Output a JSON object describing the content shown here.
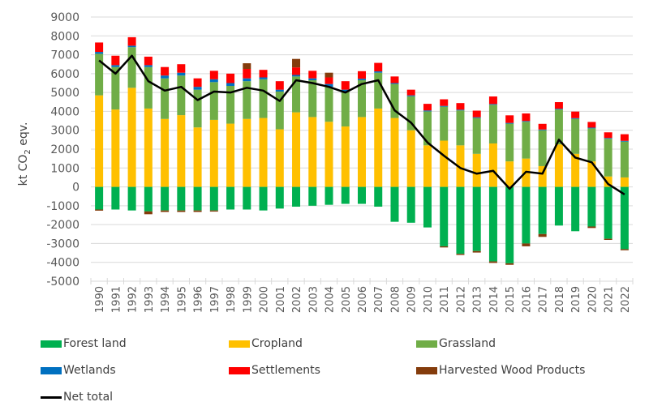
{
  "chart_data": {
    "type": "bar",
    "subtype": "stacked-bar-with-line",
    "title": "",
    "xlabel": "",
    "ylabel": "kt CO2 eqv.",
    "ylim": [
      -5000,
      9000
    ],
    "yticks": [
      9000,
      8000,
      7000,
      6000,
      5000,
      4000,
      3000,
      2000,
      1000,
      0,
      -1000,
      -2000,
      -3000,
      -4000,
      -5000
    ],
    "grid": true,
    "legend_position": "bottom",
    "categories": [
      "1990",
      "1991",
      "1992",
      "1993",
      "1994",
      "1995",
      "1996",
      "1997",
      "1998",
      "1999",
      "2000",
      "2001",
      "2002",
      "2003",
      "2004",
      "2005",
      "2006",
      "2007",
      "2008",
      "2009",
      "2010",
      "2011",
      "2012",
      "2013",
      "2014",
      "2015",
      "2016",
      "2017",
      "2018",
      "2019",
      "2020",
      "2021",
      "2022"
    ],
    "series": [
      {
        "name": "Forest land",
        "color": "#00B050",
        "values": [
          -1200,
          -1200,
          -1250,
          -1300,
          -1250,
          -1250,
          -1250,
          -1250,
          -1200,
          -1200,
          -1250,
          -1150,
          -1050,
          -1000,
          -950,
          -900,
          -900,
          -1050,
          -1850,
          -1900,
          -2150,
          -3150,
          -3550,
          -3400,
          -3950,
          -4050,
          -3000,
          -2500,
          -2050,
          -2350,
          -2100,
          -2750,
          -3300
        ]
      },
      {
        "name": "Cropland",
        "color": "#FFC000",
        "values": [
          4850,
          4100,
          5250,
          4150,
          3600,
          3800,
          3150,
          3550,
          3350,
          3600,
          3650,
          3050,
          3950,
          3700,
          3450,
          3200,
          3700,
          4150,
          3650,
          3000,
          2200,
          2450,
          2200,
          1750,
          2300,
          1350,
          1500,
          1100,
          2250,
          1750,
          1350,
          550,
          500
        ]
      },
      {
        "name": "Grassland",
        "color": "#70AD47",
        "values": [
          2200,
          2250,
          2150,
          2200,
          2150,
          2100,
          2000,
          2000,
          2000,
          2000,
          2050,
          2000,
          1900,
          1950,
          1850,
          1850,
          1950,
          1900,
          1800,
          1800,
          1800,
          1800,
          1850,
          1900,
          2050,
          2000,
          1950,
          1900,
          1850,
          1850,
          1750,
          2000,
          1900
        ]
      },
      {
        "name": "Wetlands",
        "color": "#0070C0",
        "values": [
          100,
          100,
          80,
          100,
          150,
          150,
          150,
          150,
          150,
          150,
          100,
          100,
          80,
          100,
          150,
          100,
          80,
          70,
          50,
          50,
          50,
          40,
          40,
          40,
          40,
          40,
          40,
          40,
          40,
          40,
          40,
          40,
          40
        ]
      },
      {
        "name": "Settlements",
        "color": "#FF0000",
        "values": [
          500,
          500,
          450,
          450,
          450,
          450,
          450,
          450,
          500,
          500,
          400,
          450,
          400,
          400,
          350,
          450,
          400,
          450,
          350,
          300,
          350,
          350,
          350,
          350,
          400,
          400,
          400,
          300,
          350,
          350,
          300,
          300,
          350
        ]
      },
      {
        "name": "Harvested Wood Products",
        "color": "#843C0C",
        "values": [
          -60,
          0,
          0,
          -150,
          -80,
          -80,
          -80,
          -60,
          0,
          300,
          0,
          0,
          450,
          0,
          250,
          0,
          0,
          0,
          0,
          0,
          0,
          -60,
          -60,
          -80,
          -80,
          -80,
          -150,
          -150,
          0,
          0,
          -80,
          -60,
          -60
        ]
      }
    ],
    "line": {
      "name": "Net total",
      "color": "#000000",
      "values": [
        6700,
        6000,
        6950,
        5600,
        5100,
        5300,
        4600,
        5050,
        5000,
        5250,
        5100,
        4550,
        5650,
        5500,
        5300,
        5000,
        5450,
        5650,
        4050,
        3400,
        2350,
        1650,
        1000,
        700,
        850,
        -100,
        800,
        700,
        2500,
        1550,
        1300,
        150,
        -400
      ]
    }
  }
}
